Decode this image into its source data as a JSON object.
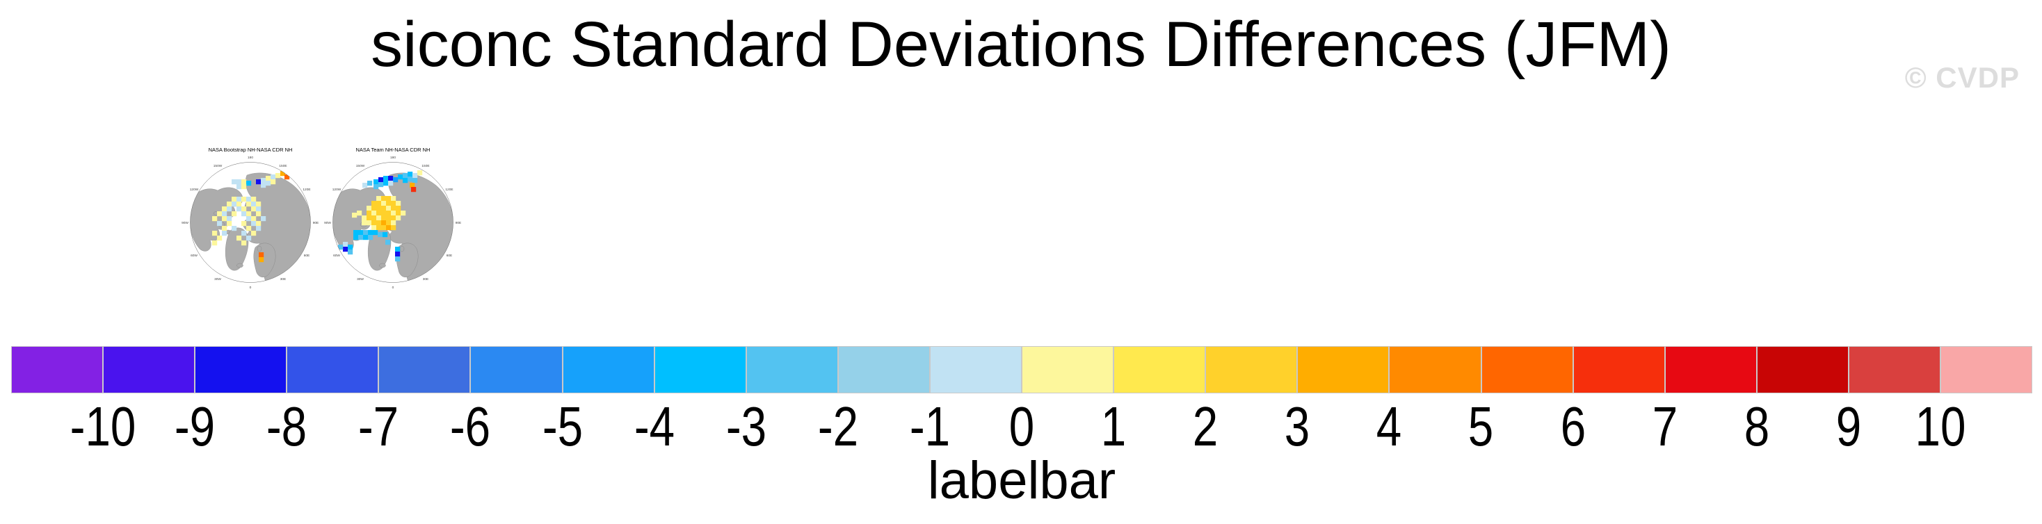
{
  "header": {
    "title": "siconc Standard Deviations Differences (JFM)",
    "watermark": "© CVDP"
  },
  "panels": [
    {
      "title": "NASA Bootstrap NH-NASA CDR NH",
      "lon_labels": [
        "180",
        "150E",
        "120E",
        "90E",
        "60E",
        "30E",
        "0",
        "30W",
        "60W",
        "90W",
        "120W",
        "150W"
      ],
      "cells": [
        [
          78,
          52,
          10
        ],
        [
          85,
          52,
          10
        ],
        [
          92,
          52,
          11
        ],
        [
          99,
          54,
          7
        ],
        [
          113,
          52,
          2
        ],
        [
          120,
          50,
          10
        ],
        [
          127,
          47,
          11
        ],
        [
          134,
          45,
          10
        ],
        [
          141,
          43,
          11
        ],
        [
          148,
          40,
          14
        ],
        [
          154,
          45,
          16
        ],
        [
          85,
          59,
          10
        ],
        [
          92,
          59,
          11
        ],
        [
          120,
          57,
          10
        ],
        [
          127,
          54,
          10
        ],
        [
          134,
          52,
          11
        ],
        [
          78,
          77,
          11
        ],
        [
          85,
          77,
          10
        ],
        [
          92,
          77,
          11
        ],
        [
          99,
          77,
          10
        ],
        [
          106,
          77,
          11
        ],
        [
          71,
          84,
          11
        ],
        [
          78,
          84,
          10
        ],
        [
          85,
          84,
          11
        ],
        [
          99,
          84,
          11
        ],
        [
          106,
          84,
          10
        ],
        [
          113,
          84,
          11
        ],
        [
          64,
          91,
          11
        ],
        [
          71,
          91,
          10
        ],
        [
          85,
          91,
          10
        ],
        [
          92,
          91,
          11
        ],
        [
          106,
          91,
          11
        ],
        [
          113,
          91,
          10
        ],
        [
          57,
          98,
          11
        ],
        [
          64,
          98,
          10
        ],
        [
          78,
          98,
          11
        ],
        [
          92,
          98,
          10
        ],
        [
          99,
          98,
          11
        ],
        [
          113,
          98,
          11
        ],
        [
          50,
          105,
          11
        ],
        [
          64,
          105,
          11
        ],
        [
          71,
          105,
          10
        ],
        [
          99,
          105,
          10
        ],
        [
          106,
          105,
          11
        ],
        [
          120,
          105,
          10
        ],
        [
          57,
          112,
          10
        ],
        [
          71,
          112,
          11
        ],
        [
          92,
          112,
          11
        ],
        [
          106,
          112,
          10
        ],
        [
          113,
          112,
          11
        ],
        [
          64,
          119,
          11
        ],
        [
          78,
          119,
          10
        ],
        [
          99,
          119,
          11
        ],
        [
          113,
          119,
          10
        ],
        [
          50,
          126,
          11
        ],
        [
          64,
          126,
          10
        ],
        [
          92,
          126,
          10
        ],
        [
          106,
          126,
          11
        ],
        [
          57,
          133,
          11
        ],
        [
          85,
          133,
          11
        ],
        [
          99,
          133,
          10
        ],
        [
          50,
          140,
          11
        ],
        [
          92,
          140,
          11
        ],
        [
          117,
          157,
          16
        ],
        [
          117,
          164,
          14
        ]
      ]
    },
    {
      "title": "NASA Team NH-NASA CDR NH",
      "lon_labels": [
        "180",
        "150E",
        "120E",
        "90E",
        "60E",
        "30E",
        "0",
        "30W",
        "60W",
        "90W",
        "120W",
        "150W"
      ],
      "cells": [
        [
          77,
          52,
          7
        ],
        [
          84,
          49,
          2
        ],
        [
          91,
          47,
          7
        ],
        [
          98,
          47,
          2
        ],
        [
          105,
          49,
          6
        ],
        [
          112,
          45,
          7
        ],
        [
          119,
          43,
          8
        ],
        [
          126,
          41,
          7
        ],
        [
          133,
          43,
          10
        ],
        [
          140,
          39,
          11
        ],
        [
          84,
          56,
          8
        ],
        [
          91,
          54,
          7
        ],
        [
          77,
          59,
          8
        ],
        [
          119,
          50,
          7
        ],
        [
          126,
          48,
          8
        ],
        [
          133,
          50,
          8
        ],
        [
          129,
          57,
          14
        ],
        [
          131,
          63,
          17
        ],
        [
          98,
          54,
          10
        ],
        [
          61,
          57,
          10
        ],
        [
          68,
          54,
          8
        ],
        [
          81,
          76,
          11
        ],
        [
          88,
          76,
          13
        ],
        [
          95,
          76,
          13
        ],
        [
          102,
          76,
          11
        ],
        [
          74,
          83,
          13
        ],
        [
          81,
          83,
          13
        ],
        [
          88,
          83,
          11
        ],
        [
          95,
          83,
          13
        ],
        [
          102,
          83,
          13
        ],
        [
          109,
          83,
          11
        ],
        [
          67,
          90,
          11
        ],
        [
          74,
          90,
          13
        ],
        [
          81,
          90,
          13
        ],
        [
          88,
          90,
          13
        ],
        [
          95,
          90,
          11
        ],
        [
          102,
          90,
          13
        ],
        [
          109,
          90,
          13
        ],
        [
          67,
          97,
          13
        ],
        [
          74,
          97,
          11
        ],
        [
          81,
          97,
          13
        ],
        [
          88,
          97,
          13
        ],
        [
          95,
          97,
          13
        ],
        [
          102,
          97,
          11
        ],
        [
          109,
          97,
          13
        ],
        [
          116,
          97,
          11
        ],
        [
          60,
          104,
          11
        ],
        [
          67,
          104,
          13
        ],
        [
          74,
          104,
          13
        ],
        [
          81,
          104,
          11
        ],
        [
          88,
          104,
          13
        ],
        [
          95,
          104,
          13
        ],
        [
          102,
          104,
          13
        ],
        [
          109,
          104,
          11
        ],
        [
          67,
          111,
          11
        ],
        [
          74,
          111,
          13
        ],
        [
          81,
          111,
          13
        ],
        [
          88,
          111,
          14
        ],
        [
          95,
          111,
          13
        ],
        [
          102,
          111,
          11
        ],
        [
          74,
          118,
          11
        ],
        [
          81,
          118,
          13
        ],
        [
          88,
          118,
          13
        ],
        [
          95,
          118,
          14
        ],
        [
          102,
          118,
          13
        ],
        [
          53,
          97,
          11
        ],
        [
          46,
          100,
          11
        ],
        [
          60,
          111,
          11
        ],
        [
          48,
          125,
          7
        ],
        [
          55,
          125,
          7
        ],
        [
          62,
          125,
          8
        ],
        [
          69,
          125,
          7
        ],
        [
          76,
          125,
          7
        ],
        [
          83,
          128,
          8
        ],
        [
          90,
          128,
          7
        ],
        [
          48,
          132,
          7
        ],
        [
          55,
          132,
          8
        ],
        [
          62,
          132,
          7
        ],
        [
          69,
          132,
          8
        ],
        [
          94,
          139,
          8
        ],
        [
          33,
          142,
          10
        ],
        [
          33,
          149,
          2
        ],
        [
          40,
          146,
          7
        ],
        [
          40,
          153,
          8
        ],
        [
          26,
          146,
          8
        ],
        [
          108,
          149,
          7
        ],
        [
          108,
          156,
          2
        ],
        [
          108,
          163,
          8
        ]
      ]
    }
  ],
  "colorbar": {
    "caption": "labelbar",
    "tick_labels": [
      "-10",
      "-9",
      "-8",
      "-7",
      "-6",
      "-5",
      "-4",
      "-3",
      "-2",
      "-1",
      "0",
      "1",
      "2",
      "3",
      "4",
      "5",
      "6",
      "7",
      "8",
      "9",
      "10"
    ],
    "colors": [
      "#8321E4",
      "#4A13EE",
      "#1411EF",
      "#3353E9",
      "#3D6EE0",
      "#2B89F2",
      "#16A1FB",
      "#00BFFF",
      "#53C3F1",
      "#95D1E9",
      "#C1E2F3",
      "#FDF79C",
      "#FFE94E",
      "#FFD12B",
      "#FFAD00",
      "#FF8A00",
      "#FF6600",
      "#F62F0C",
      "#E70912",
      "#C80505",
      "#D9403E",
      "#F9A7A7"
    ]
  },
  "chart_data": {
    "type": "heatmap",
    "title": "siconc Standard Deviations Differences (JFM)",
    "panels": [
      "NASA Bootstrap NH-NASA CDR NH",
      "NASA Team NH-NASA CDR NH"
    ],
    "projection": "north-polar-stereographic",
    "colorbar_caption": "labelbar",
    "levels": [
      -10,
      -9,
      -8,
      -7,
      -6,
      -5,
      -4,
      -3,
      -2,
      -1,
      0,
      1,
      2,
      3,
      4,
      5,
      6,
      7,
      8,
      9,
      10
    ],
    "colors": [
      "#8321E4",
      "#4A13EE",
      "#1411EF",
      "#3353E9",
      "#3D6EE0",
      "#2B89F2",
      "#16A1FB",
      "#00BFFF",
      "#53C3F1",
      "#95D1E9",
      "#C1E2F3",
      "#FDF79C",
      "#FFE94E",
      "#FFD12B",
      "#FFAD00",
      "#FF8A00",
      "#FF6600",
      "#F62F0C",
      "#E70912",
      "#C80505",
      "#D9403E",
      "#F9A7A7"
    ],
    "legend_position": "bottom"
  }
}
